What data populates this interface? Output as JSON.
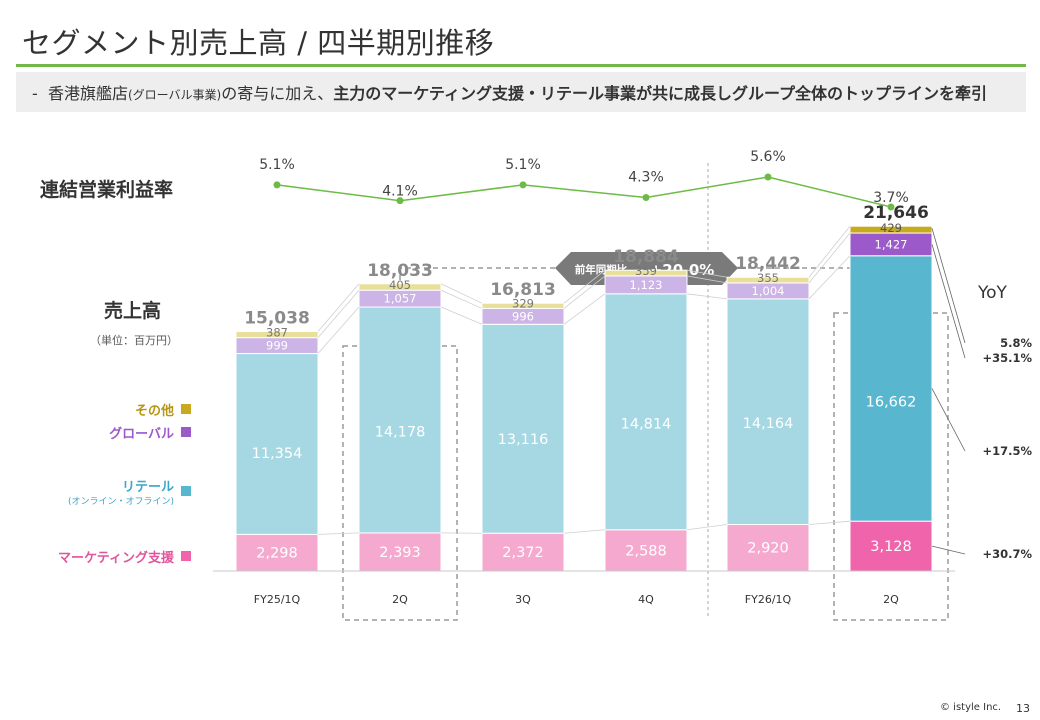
{
  "header": {
    "title": "セグメント別売上高 / 四半期別推移",
    "bullet": "-",
    "sub_part1": "香港旗艦店",
    "sub_part2": "(グローバル事業)",
    "sub_part3": "の寄与に加え、",
    "sub_part4": "主力のマーケティング支援・リテール事業が共に成長しグループ全体のトップラインを牽引"
  },
  "labels": {
    "margin_title": "連結営業利益率",
    "sales_title": "売上高",
    "sales_unit": "（単位：百万円）",
    "yoy": "YoY",
    "callout_label": "前年同期比",
    "callout_value": "+20.0%"
  },
  "legend": {
    "other": "その他",
    "global": "グローバル",
    "retail": "リテール",
    "retail_sub": "(オンライン・オフライン)",
    "marketing": "マーケティング支援"
  },
  "colors": {
    "marketing": "#f6a9cf",
    "marketing_hl": "#ef64aa",
    "retail": "#a6d8e4",
    "retail_hl": "#58b7cf",
    "global": "#cdb4e6",
    "global_hl": "#9b59c9",
    "other": "#e7df9a",
    "other_hl": "#c8aa1e",
    "line": "#6dbb45",
    "accent_green": "#72b84a"
  },
  "chart_data": {
    "type": "bar",
    "stacked": true,
    "categories": [
      "FY25/1Q",
      "2Q",
      "3Q",
      "4Q",
      "FY26/1Q",
      "2Q"
    ],
    "series": [
      {
        "name": "マーケティング支援",
        "key": "marketing",
        "values": [
          2298,
          2393,
          2372,
          2588,
          2920,
          3128
        ]
      },
      {
        "name": "リテール",
        "key": "retail",
        "values": [
          11354,
          14178,
          13116,
          14814,
          14164,
          16662
        ]
      },
      {
        "name": "グローバル",
        "key": "global",
        "values": [
          999,
          1057,
          996,
          1123,
          1004,
          1427
        ]
      },
      {
        "name": "その他",
        "key": "other",
        "values": [
          387,
          405,
          329,
          359,
          355,
          429
        ]
      }
    ],
    "value_labels": {
      "marketing": [
        "2,298",
        "2,393",
        "2,372",
        "2,588",
        "2,920",
        "3,128"
      ],
      "retail": [
        "11,354",
        "14,178",
        "13,116",
        "14,814",
        "14,164",
        "16,662"
      ],
      "global": [
        "999",
        "1,057",
        "996",
        "1,123",
        "1,004",
        "1,427"
      ],
      "other": [
        "387",
        "405",
        "329",
        "359",
        "355",
        "429"
      ]
    },
    "totals": [
      "15,038",
      "18,033",
      "16,813",
      "18,884",
      "18,442",
      "21,646"
    ],
    "total_values": [
      15038,
      18033,
      16813,
      18884,
      18442,
      21646
    ],
    "highlight_index": 5,
    "boxed_indices": [
      1,
      5
    ],
    "ylim": [
      0,
      22000
    ],
    "operating_margin": {
      "values": [
        5.1,
        4.1,
        5.1,
        4.3,
        5.6,
        3.7
      ],
      "labels": [
        "5.1%",
        "4.1%",
        "5.1%",
        "4.3%",
        "5.6%",
        "3.7%"
      ]
    },
    "yoy": {
      "other": "5.8%",
      "global": "+35.1%",
      "retail": "+17.5%",
      "marketing": "+30.7%"
    }
  },
  "footer": {
    "copyright": "© istyle Inc.",
    "page": "13"
  }
}
